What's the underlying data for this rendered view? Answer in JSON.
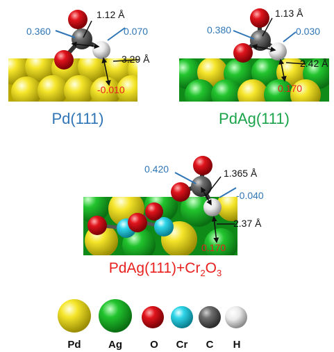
{
  "panels": [
    {
      "title": "Pd(111)",
      "title_color": "#2e75b6",
      "charge_o": "0.360",
      "charge_h": "0.070",
      "charge_surface": "-0.010",
      "bond_ch": "1.12 Å",
      "bond_h_surface": "3.29 Å"
    },
    {
      "title": "PdAg(111)",
      "title_color": "#1aa34a",
      "charge_o": "0.380",
      "charge_h": "0.030",
      "charge_surface": "0.170",
      "bond_ch": "1.13 Å",
      "bond_h_surface": "2.42 Å"
    },
    {
      "title_main": "PdAg(111)+Cr",
      "title_sub1": "2",
      "title_mid": "O",
      "title_sub2": "3",
      "title_color": "#e8201e",
      "charge_o": "0.420",
      "charge_h": "-0.040",
      "charge_surface": "0.170",
      "bond_ch": "1.365 Å",
      "bond_h_surface": "2.37 Å"
    }
  ],
  "legend": [
    {
      "label": "Pd",
      "color": "#f5e52a"
    },
    {
      "label": "Ag",
      "color": "#22c42e"
    },
    {
      "label": "O",
      "color": "#e0141c"
    },
    {
      "label": "Cr",
      "color": "#2fd5e8"
    },
    {
      "label": "C",
      "color": "#6e6e6e"
    },
    {
      "label": "H",
      "color": "#e6e6e6"
    }
  ],
  "colors": {
    "charge_blue": "#2e75b6",
    "charge_red": "#e8201e",
    "pd": "#f5e52a",
    "ag": "#22c42e",
    "o": "#e0141c",
    "cr": "#2fd5e8",
    "c": "#6e6e6e",
    "h": "#e6e6e6"
  }
}
